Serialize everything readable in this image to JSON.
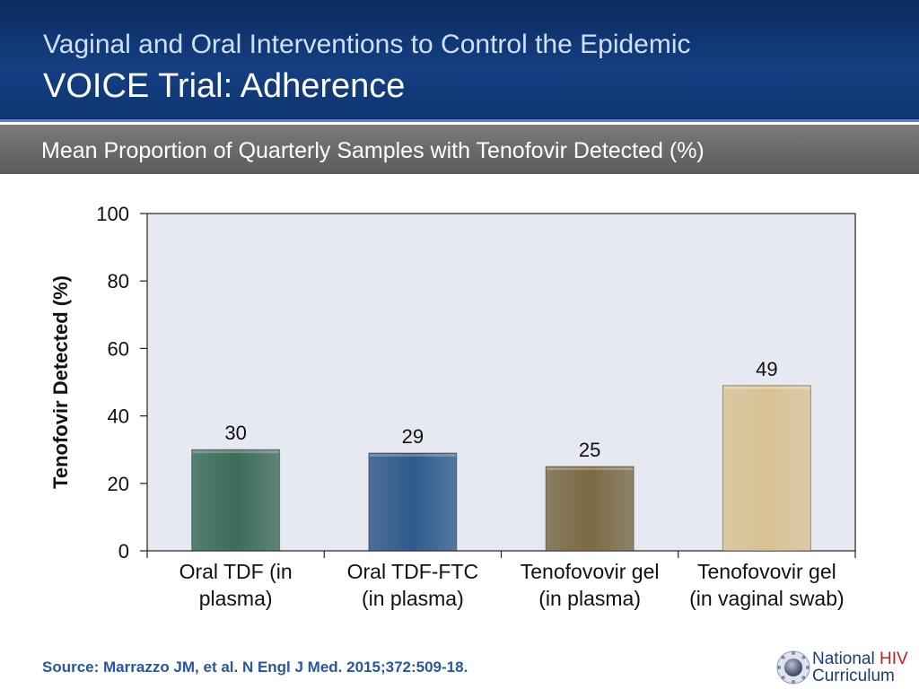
{
  "header": {
    "title_line1": "Vaginal and Oral Interventions to Control the Epidemic",
    "title_line2": "VOICE Trial: Adherence"
  },
  "subtitle": "Mean Proportion of Quarterly Samples with Tenofovir Detected (%)",
  "chart_data": {
    "type": "bar",
    "title": "Mean Proportion of Quarterly Samples with Tenofovir Detected (%)",
    "xlabel": "",
    "ylabel": "Tenofovir Detected (%)",
    "ylim": [
      0,
      100
    ],
    "yticks": [
      0,
      20,
      40,
      60,
      80,
      100
    ],
    "grid": false,
    "categories": [
      [
        "Oral TDF (in",
        "plasma)"
      ],
      [
        "Oral TDF-FTC",
        "(in plasma)"
      ],
      [
        "Tenofovovir gel",
        "(in plasma)"
      ],
      [
        "Tenofovovir gel",
        "(in vaginal swab)"
      ]
    ],
    "values": [
      30,
      29,
      25,
      49
    ],
    "colors": [
      "#3d6b5a",
      "#2f5a8c",
      "#7a6a45",
      "#d8c294"
    ],
    "plot_background": "#e6e9f2"
  },
  "source": "Source: Marrazzo JM, et al. N Engl J Med. 2015;372:509-18.",
  "logo": {
    "line1": "National ",
    "line1_accent": "HIV",
    "line2": "Curriculum",
    "accent_color": "#c0202a"
  }
}
